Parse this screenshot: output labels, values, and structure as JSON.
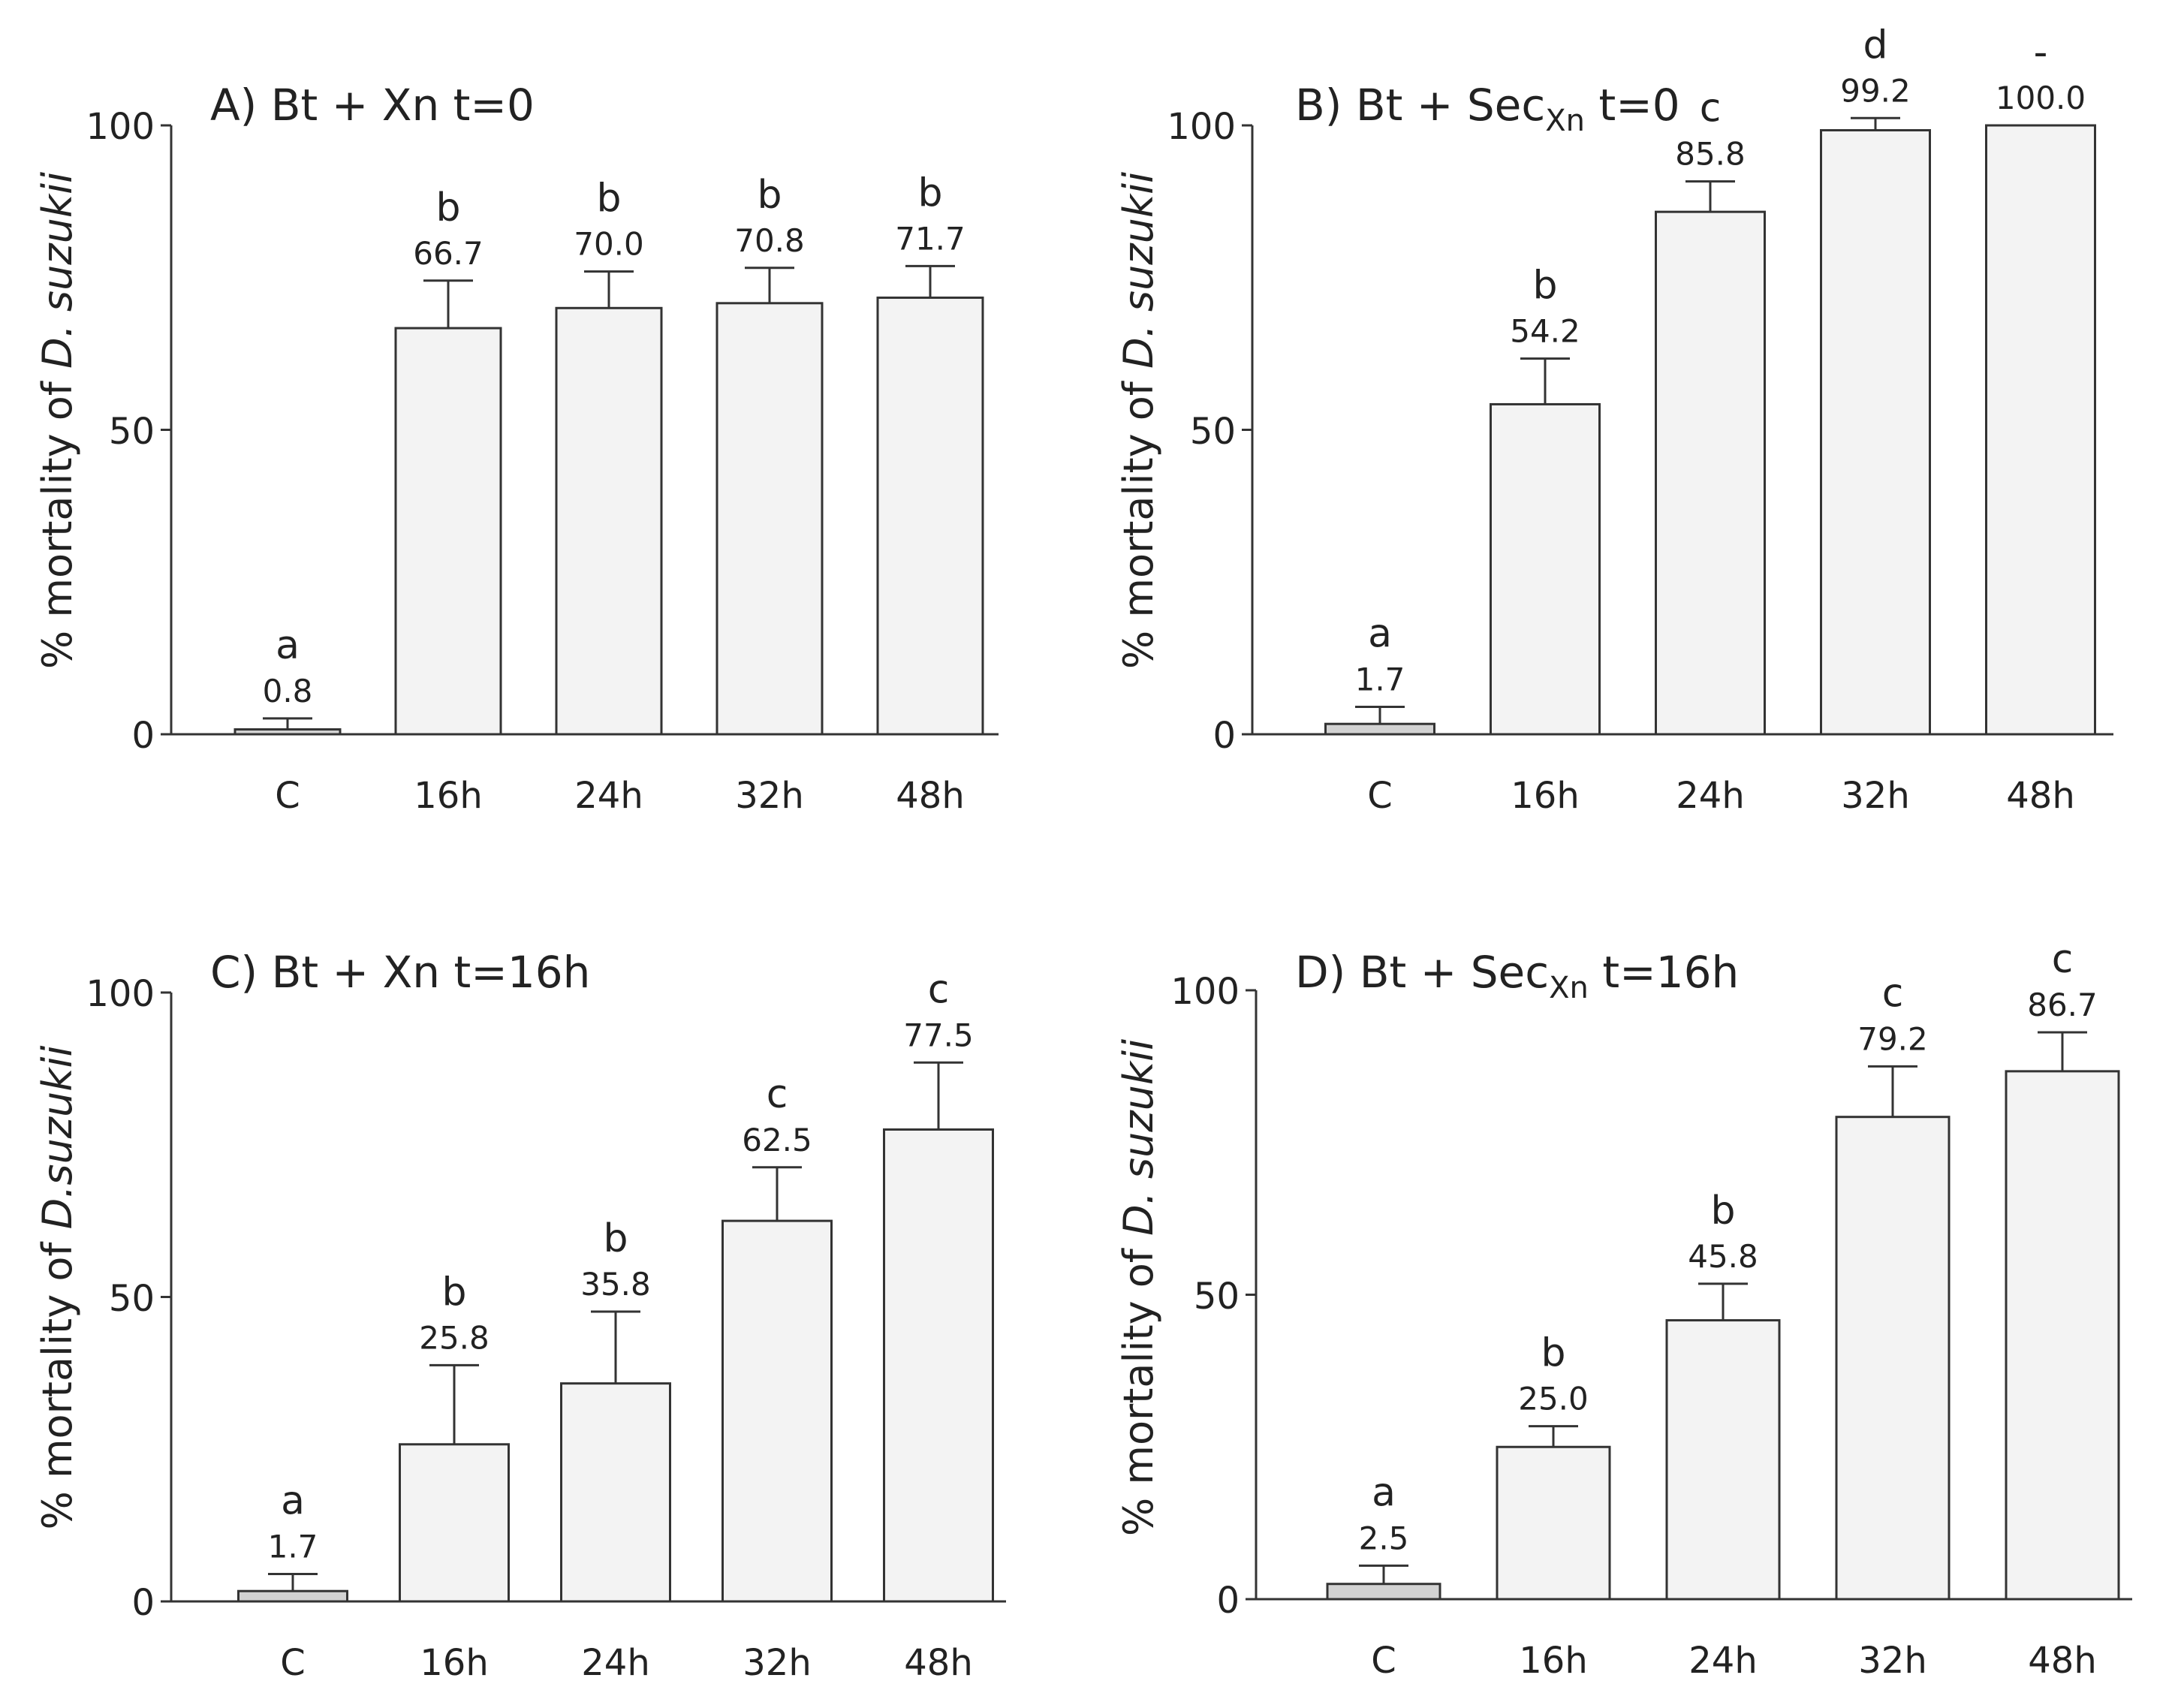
{
  "figure": {
    "y_axis_prefix": "% mortality of ",
    "ytick_labels": [
      "0",
      "50",
      "100"
    ]
  },
  "colors": {
    "bar_fill": "#f3f3f3",
    "control_fill": "#d2d2d2",
    "axis": "#333333",
    "text": "#222222"
  },
  "chart_data": [
    {
      "type": "bar",
      "panel": "A",
      "title_main": "A) Bt + Xn t=0",
      "title_subscript": "",
      "title_suffix": "",
      "ylabel_species": "D. suzukii",
      "categories": [
        "C",
        "16h",
        "24h",
        "32h",
        "48h"
      ],
      "values": [
        0.8,
        66.7,
        70.0,
        70.8,
        71.7
      ],
      "value_labels": [
        "0.8",
        "66.7",
        "70.0",
        "70.8",
        "71.7"
      ],
      "errors": [
        1.8,
        7.8,
        6.0,
        5.8,
        5.2
      ],
      "significance": [
        "a",
        "b",
        "b",
        "b",
        "b"
      ],
      "ylim": [
        0,
        100
      ],
      "yticks": [
        0,
        50,
        100
      ]
    },
    {
      "type": "bar",
      "panel": "B",
      "title_main": "B) Bt + Sec",
      "title_subscript": "Xn",
      "title_suffix": " t=0",
      "ylabel_species": "D. suzukii",
      "categories": [
        "C",
        "16h",
        "24h",
        "32h",
        "48h"
      ],
      "values": [
        1.7,
        54.2,
        85.8,
        99.2,
        100.0
      ],
      "value_labels": [
        "1.7",
        "54.2",
        "85.8",
        "99.2",
        "100.0"
      ],
      "errors": [
        2.8,
        7.5,
        5.0,
        2.0,
        0
      ],
      "significance": [
        "a",
        "b",
        "c",
        "d",
        "-"
      ],
      "ylim": [
        0,
        100
      ],
      "yticks": [
        0,
        50,
        100
      ]
    },
    {
      "type": "bar",
      "panel": "C",
      "title_main": "C) Bt + Xn t=16h",
      "title_subscript": "",
      "title_suffix": "",
      "ylabel_species": "D.suzukii",
      "categories": [
        "C",
        "16h",
        "24h",
        "32h",
        "48h"
      ],
      "values": [
        1.7,
        25.8,
        35.8,
        62.5,
        77.5
      ],
      "value_labels": [
        "1.7",
        "25.8",
        "35.8",
        "62.5",
        "77.5"
      ],
      "errors": [
        2.8,
        13.0,
        11.8,
        8.8,
        11.0
      ],
      "significance": [
        "a",
        "b",
        "b",
        "c",
        "c"
      ],
      "ylim": [
        0,
        100
      ],
      "yticks": [
        0,
        50,
        100
      ]
    },
    {
      "type": "bar",
      "panel": "D",
      "title_main": "D) Bt + Sec",
      "title_subscript": "Xn",
      "title_suffix": " t=16h",
      "ylabel_species": "D. suzukii",
      "categories": [
        "C",
        "16h",
        "24h",
        "32h",
        "48h"
      ],
      "values": [
        2.5,
        25.0,
        45.8,
        79.2,
        86.7
      ],
      "value_labels": [
        "2.5",
        "25.0",
        "45.8",
        "79.2",
        "86.7"
      ],
      "errors": [
        3.0,
        3.4,
        6.0,
        8.3,
        6.4
      ],
      "significance": [
        "a",
        "b",
        "b",
        "c",
        "c"
      ],
      "ylim": [
        0,
        100
      ],
      "yticks": [
        0,
        50,
        100
      ]
    }
  ]
}
